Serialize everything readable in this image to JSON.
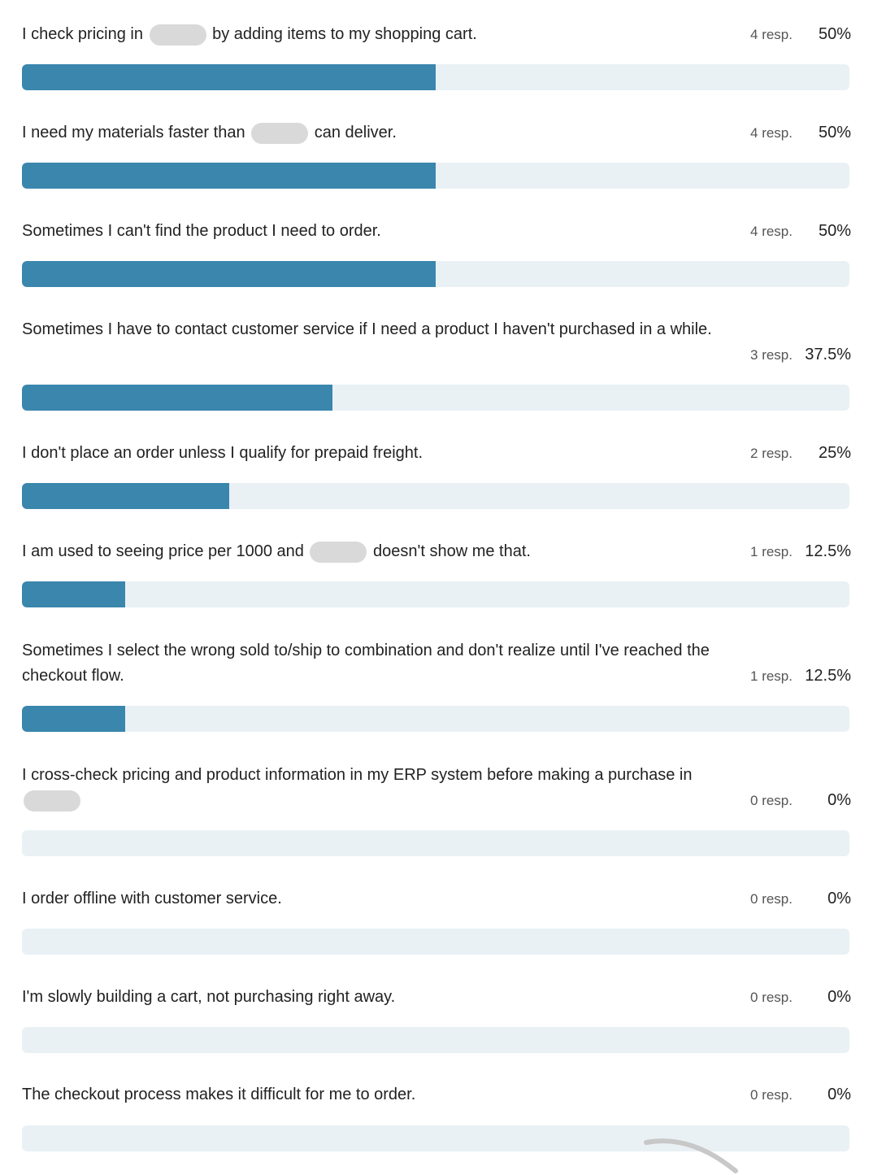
{
  "items": [
    {
      "label_before": "I check pricing in",
      "label_after": "by adding items to my shopping cart.",
      "redacted": true,
      "resp": "4 resp.",
      "percent_text": "50%",
      "percent": 50
    },
    {
      "label_before": "I need my materials faster than",
      "label_after": "can deliver.",
      "redacted": true,
      "resp": "4 resp.",
      "percent_text": "50%",
      "percent": 50
    },
    {
      "label_before": "Sometimes I can't find the product I need to order.",
      "label_after": "",
      "redacted": false,
      "resp": "4 resp.",
      "percent_text": "50%",
      "percent": 50
    },
    {
      "label_before": "Sometimes I have to contact customer service if I need a product I haven't purchased in a while.",
      "label_after": "",
      "redacted": false,
      "resp": "3 resp.",
      "percent_text": "37.5%",
      "percent": 37.5
    },
    {
      "label_before": "I don't place an order unless I qualify for prepaid freight.",
      "label_after": "",
      "redacted": false,
      "resp": "2 resp.",
      "percent_text": "25%",
      "percent": 25
    },
    {
      "label_before": "I am used to seeing price per 1000 and",
      "label_after": "doesn't show me that.",
      "redacted": true,
      "resp": "1 resp.",
      "percent_text": "12.5%",
      "percent": 12.5
    },
    {
      "label_before": "Sometimes I select the wrong sold to/ship to combination and don't realize until I've reached the checkout flow.",
      "label_after": "",
      "redacted": false,
      "resp": "1 resp.",
      "percent_text": "12.5%",
      "percent": 12.5
    },
    {
      "label_before": "I cross-check pricing and product information in my ERP system before making a purchase in",
      "label_after": "",
      "redacted": true,
      "resp": "0 resp.",
      "percent_text": "0%",
      "percent": 0
    },
    {
      "label_before": "I order offline with customer service.",
      "label_after": "",
      "redacted": false,
      "resp": "0 resp.",
      "percent_text": "0%",
      "percent": 0
    },
    {
      "label_before": "I'm slowly building a cart, not purchasing right away.",
      "label_after": "",
      "redacted": false,
      "resp": "0 resp.",
      "percent_text": "0%",
      "percent": 0
    },
    {
      "label_before": "The checkout process makes it difficult for me to order.",
      "label_after": "",
      "redacted": false,
      "resp": "0 resp.",
      "percent_text": "0%",
      "percent": 0
    }
  ],
  "colors": {
    "bar_fill": "#3a86ad",
    "bar_track": "#eaf1f5",
    "redaction": "#d9d9d9"
  }
}
